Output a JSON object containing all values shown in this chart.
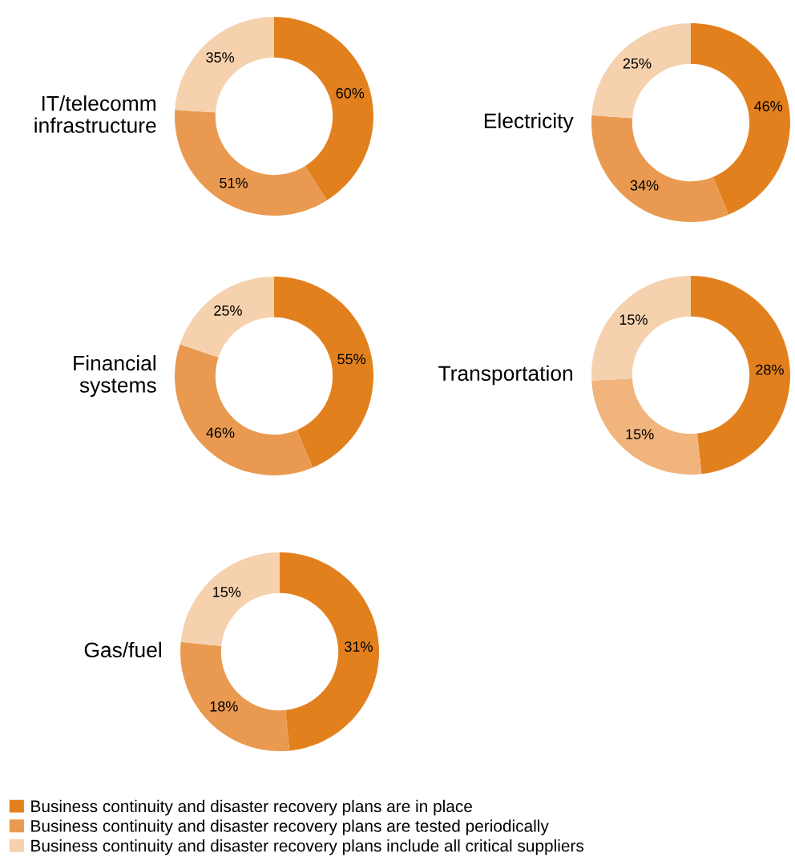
{
  "chart_data": [
    {
      "type": "donut",
      "title": "IT/telecomm\ninfrastructure",
      "categories": [
        "Business continuity and disaster recovery plans are in place",
        "Business continuity and disaster recovery plans are tested periodically",
        "Business continuity and disaster recovery plans include all critical suppliers"
      ],
      "values": [
        60,
        51,
        35
      ],
      "value_labels": [
        "60%",
        "51%",
        "35%"
      ],
      "colors": [
        "#e3801e",
        "#e99a50",
        "#f5d1ae"
      ],
      "legend": "bottom"
    },
    {
      "type": "donut",
      "title": "Electricity",
      "categories": [
        null,
        null,
        null
      ],
      "values": [
        46,
        34,
        25
      ],
      "value_labels": [
        "46%",
        "34%",
        "25%"
      ],
      "colors": [
        "#e3801e",
        "#e99a50",
        "#f5d1ae"
      ]
    },
    {
      "type": "donut",
      "title": "Financial\nsystems",
      "categories": [
        null,
        null,
        null
      ],
      "values": [
        55,
        46,
        25
      ],
      "value_labels": [
        "55%",
        "46%",
        "25%"
      ],
      "colors": [
        "#e3801e",
        "#e99a50",
        "#f5d1ae"
      ]
    },
    {
      "type": "donut",
      "title": "Transportation",
      "categories": [
        null,
        null,
        null
      ],
      "values": [
        28,
        15,
        15
      ],
      "value_labels": [
        "28%",
        "15%",
        "15%"
      ],
      "colors": [
        "#e3801e",
        "#f1b47c",
        "#f5d1ae"
      ]
    },
    {
      "type": "donut",
      "title": "Gas/fuel",
      "categories": [
        null,
        null,
        null
      ],
      "values": [
        31,
        18,
        15
      ],
      "value_labels": [
        "31%",
        "18%",
        "15%"
      ],
      "colors": [
        "#e3801e",
        "#e99a50",
        "#f5d1ae"
      ]
    }
  ]
}
